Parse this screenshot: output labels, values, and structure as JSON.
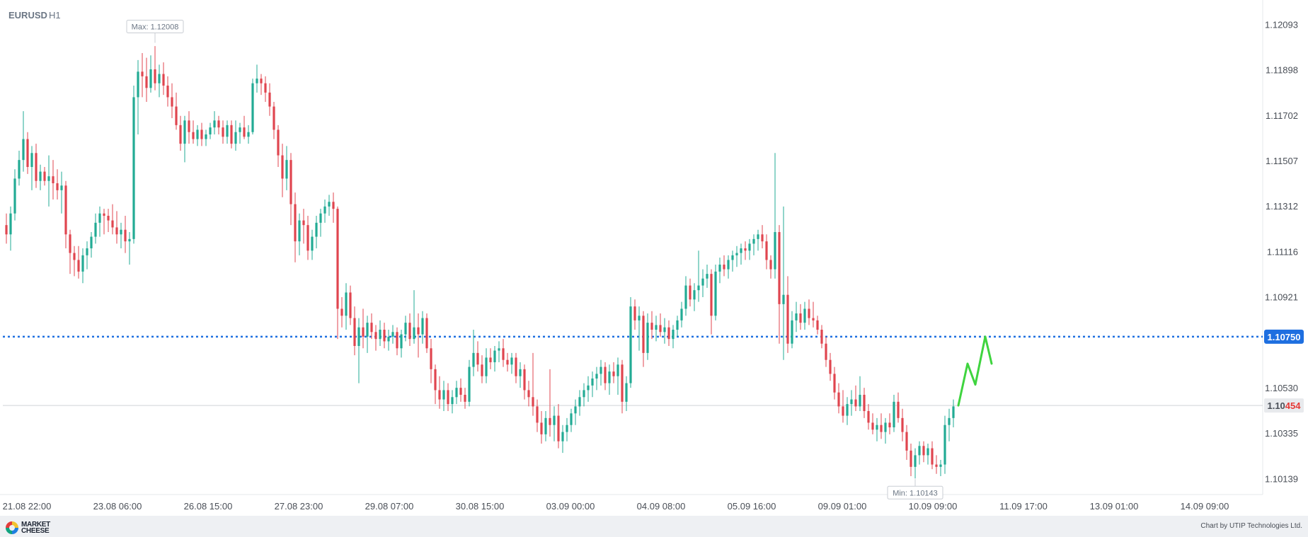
{
  "chart_data": {
    "type": "candlestick",
    "symbol": "EURUSD",
    "timeframe": "H1",
    "ylim": [
      1.1008,
      1.1218
    ],
    "y_ticks": [
      "1.12093",
      "1.11898",
      "1.11702",
      "1.11507",
      "1.11312",
      "1.11116",
      "1.10921",
      "1.10530",
      "1.10335",
      "1.10139"
    ],
    "x_ticks": [
      "21.08 22:00",
      "23.08 06:00",
      "26.08 15:00",
      "27.08 23:00",
      "29.08 07:00",
      "30.08 15:00",
      "03.09 00:00",
      "04.09 08:00",
      "05.09 16:00",
      "09.09 01:00",
      "10.09 09:00",
      "11.09 17:00",
      "13.09 01:00",
      "14.09 09:00"
    ],
    "max_label": "Max: 1.12008",
    "max_value": 1.12008,
    "min_label": "Min: 1.10143",
    "min_value": 1.10143,
    "target_level": 1.1075,
    "target_label": "1.10750",
    "current_price": 1.10454,
    "current_label_prefix": "1.10",
    "current_label_suffix": "454",
    "forecast_path": [
      1.10454,
      1.10634,
      1.10544,
      1.1075,
      1.10634
    ],
    "candles_ohlc": [
      [
        1.1123,
        1.1128,
        1.1115,
        1.1119
      ],
      [
        1.1119,
        1.1131,
        1.1112,
        1.1128
      ],
      [
        1.1128,
        1.1147,
        1.1125,
        1.1143
      ],
      [
        1.1143,
        1.1155,
        1.114,
        1.1151
      ],
      [
        1.1151,
        1.1172,
        1.1146,
        1.116
      ],
      [
        1.116,
        1.1163,
        1.1145,
        1.1148
      ],
      [
        1.1148,
        1.1157,
        1.1138,
        1.1154
      ],
      [
        1.1154,
        1.1158,
        1.1139,
        1.1142
      ],
      [
        1.1142,
        1.1149,
        1.1138,
        1.1146
      ],
      [
        1.1146,
        1.1148,
        1.114,
        1.1142
      ],
      [
        1.1142,
        1.1153,
        1.1131,
        1.1144
      ],
      [
        1.1144,
        1.1151,
        1.1134,
        1.1141
      ],
      [
        1.1141,
        1.1147,
        1.1134,
        1.1138
      ],
      [
        1.1138,
        1.1146,
        1.1128,
        1.114
      ],
      [
        1.114,
        1.1142,
        1.1113,
        1.1119
      ],
      [
        1.1119,
        1.1121,
        1.1102,
        1.1111
      ],
      [
        1.1111,
        1.1114,
        1.1101,
        1.1108
      ],
      [
        1.1108,
        1.1114,
        1.11,
        1.1103
      ],
      [
        1.1103,
        1.1113,
        1.1098,
        1.111
      ],
      [
        1.111,
        1.1116,
        1.1104,
        1.1113
      ],
      [
        1.1113,
        1.112,
        1.1109,
        1.1118
      ],
      [
        1.1118,
        1.1128,
        1.1115,
        1.1124
      ],
      [
        1.1124,
        1.1131,
        1.1118,
        1.1128
      ],
      [
        1.1128,
        1.113,
        1.1119,
        1.1127
      ],
      [
        1.1127,
        1.113,
        1.112,
        1.1125
      ],
      [
        1.1125,
        1.1132,
        1.1119,
        1.1122
      ],
      [
        1.1122,
        1.1129,
        1.1115,
        1.1119
      ],
      [
        1.1119,
        1.1124,
        1.1113,
        1.1121
      ],
      [
        1.1121,
        1.1127,
        1.1111,
        1.1116
      ],
      [
        1.1116,
        1.112,
        1.1106,
        1.1117
      ],
      [
        1.1117,
        1.1183,
        1.1115,
        1.1178
      ],
      [
        1.1178,
        1.1194,
        1.1162,
        1.1189
      ],
      [
        1.1189,
        1.1197,
        1.1178,
        1.1187
      ],
      [
        1.1187,
        1.1195,
        1.1176,
        1.1182
      ],
      [
        1.1182,
        1.1196,
        1.118,
        1.119
      ],
      [
        1.119,
        1.12,
        1.1181,
        1.1184
      ],
      [
        1.1184,
        1.1192,
        1.1178,
        1.1188
      ],
      [
        1.1188,
        1.1193,
        1.1179,
        1.1183
      ],
      [
        1.1183,
        1.1187,
        1.1174,
        1.1178
      ],
      [
        1.1178,
        1.1184,
        1.1169,
        1.1174
      ],
      [
        1.1174,
        1.118,
        1.1164,
        1.1166
      ],
      [
        1.1166,
        1.117,
        1.1155,
        1.1158
      ],
      [
        1.1158,
        1.117,
        1.115,
        1.1168
      ],
      [
        1.1168,
        1.1172,
        1.1158,
        1.1163
      ],
      [
        1.1163,
        1.1168,
        1.1158,
        1.116
      ],
      [
        1.116,
        1.1166,
        1.1157,
        1.1164
      ],
      [
        1.1164,
        1.1167,
        1.1157,
        1.116
      ],
      [
        1.116,
        1.1164,
        1.1157,
        1.1162
      ],
      [
        1.1162,
        1.1167,
        1.116,
        1.1165
      ],
      [
        1.1165,
        1.1172,
        1.1162,
        1.1168
      ],
      [
        1.1168,
        1.117,
        1.1162,
        1.1165
      ],
      [
        1.1165,
        1.1168,
        1.1158,
        1.1161
      ],
      [
        1.1161,
        1.1168,
        1.1158,
        1.1166
      ],
      [
        1.1166,
        1.1168,
        1.1156,
        1.1158
      ],
      [
        1.1158,
        1.1168,
        1.1155,
        1.1163
      ],
      [
        1.1163,
        1.1167,
        1.1158,
        1.1165
      ],
      [
        1.1165,
        1.117,
        1.116,
        1.1161
      ],
      [
        1.1161,
        1.1166,
        1.1158,
        1.1163
      ],
      [
        1.1163,
        1.1186,
        1.1162,
        1.1184
      ],
      [
        1.1184,
        1.1192,
        1.118,
        1.1186
      ],
      [
        1.1186,
        1.1188,
        1.1179,
        1.1184
      ],
      [
        1.1184,
        1.1187,
        1.1176,
        1.118
      ],
      [
        1.118,
        1.1184,
        1.117,
        1.1174
      ],
      [
        1.1174,
        1.1176,
        1.116,
        1.1164
      ],
      [
        1.1164,
        1.1166,
        1.1148,
        1.1153
      ],
      [
        1.1153,
        1.1158,
        1.1135,
        1.1143
      ],
      [
        1.1143,
        1.1157,
        1.1138,
        1.1151
      ],
      [
        1.1151,
        1.1154,
        1.1123,
        1.1132
      ],
      [
        1.1132,
        1.1137,
        1.1107,
        1.1116
      ],
      [
        1.1116,
        1.1128,
        1.111,
        1.1125
      ],
      [
        1.1125,
        1.113,
        1.1115,
        1.1123
      ],
      [
        1.1123,
        1.1127,
        1.1108,
        1.1112
      ],
      [
        1.1112,
        1.1121,
        1.1108,
        1.1118
      ],
      [
        1.1118,
        1.1127,
        1.1113,
        1.1124
      ],
      [
        1.1124,
        1.113,
        1.1118,
        1.1128
      ],
      [
        1.1128,
        1.1134,
        1.1124,
        1.1131
      ],
      [
        1.1131,
        1.1136,
        1.1127,
        1.1133
      ],
      [
        1.1133,
        1.1137,
        1.1124,
        1.113
      ],
      [
        1.113,
        1.1131,
        1.1074,
        1.1087
      ],
      [
        1.1087,
        1.1092,
        1.1079,
        1.1084
      ],
      [
        1.1084,
        1.1098,
        1.1078,
        1.1094
      ],
      [
        1.1094,
        1.1097,
        1.108,
        1.1083
      ],
      [
        1.1083,
        1.1088,
        1.1067,
        1.1071
      ],
      [
        1.1071,
        1.1083,
        1.1055,
        1.1079
      ],
      [
        1.1079,
        1.1087,
        1.107,
        1.1075
      ],
      [
        1.1075,
        1.1084,
        1.1068,
        1.1081
      ],
      [
        1.1081,
        1.1085,
        1.1074,
        1.1077
      ],
      [
        1.1077,
        1.108,
        1.1069,
        1.1074
      ],
      [
        1.1074,
        1.1082,
        1.1071,
        1.1078
      ],
      [
        1.1078,
        1.1081,
        1.107,
        1.1073
      ],
      [
        1.1073,
        1.1078,
        1.1069,
        1.1075
      ],
      [
        1.1075,
        1.108,
        1.1072,
        1.1077
      ],
      [
        1.1077,
        1.1079,
        1.1067,
        1.107
      ],
      [
        1.107,
        1.1078,
        1.1066,
        1.1076
      ],
      [
        1.1076,
        1.1084,
        1.1073,
        1.1081
      ],
      [
        1.1081,
        1.1085,
        1.1071,
        1.1074
      ],
      [
        1.1074,
        1.1095,
        1.1072,
        1.1079
      ],
      [
        1.1079,
        1.1085,
        1.1066,
        1.1076
      ],
      [
        1.1076,
        1.1086,
        1.1072,
        1.1083
      ],
      [
        1.1083,
        1.1085,
        1.1068,
        1.107
      ],
      [
        1.107,
        1.1074,
        1.1055,
        1.1061
      ],
      [
        1.1061,
        1.1063,
        1.1046,
        1.1052
      ],
      [
        1.1052,
        1.1058,
        1.1044,
        1.1048
      ],
      [
        1.1048,
        1.1056,
        1.1043,
        1.1052
      ],
      [
        1.1052,
        1.1055,
        1.1043,
        1.1046
      ],
      [
        1.1046,
        1.1052,
        1.1042,
        1.1049
      ],
      [
        1.1049,
        1.1056,
        1.1046,
        1.1053
      ],
      [
        1.1053,
        1.1057,
        1.1047,
        1.105
      ],
      [
        1.105,
        1.1053,
        1.1044,
        1.1047
      ],
      [
        1.1047,
        1.1065,
        1.1045,
        1.1062
      ],
      [
        1.1062,
        1.1078,
        1.1058,
        1.1068
      ],
      [
        1.1068,
        1.1073,
        1.106,
        1.1063
      ],
      [
        1.1063,
        1.1067,
        1.1055,
        1.1058
      ],
      [
        1.1058,
        1.107,
        1.1055,
        1.1066
      ],
      [
        1.1066,
        1.107,
        1.1061,
        1.1064
      ],
      [
        1.1064,
        1.1071,
        1.106,
        1.1069
      ],
      [
        1.1069,
        1.1073,
        1.1064,
        1.107
      ],
      [
        1.107,
        1.1074,
        1.1062,
        1.1065
      ],
      [
        1.1065,
        1.1068,
        1.106,
        1.1063
      ],
      [
        1.1063,
        1.1068,
        1.1059,
        1.1066
      ],
      [
        1.1066,
        1.1068,
        1.1055,
        1.1058
      ],
      [
        1.1058,
        1.1064,
        1.1053,
        1.1061
      ],
      [
        1.1061,
        1.1063,
        1.1048,
        1.1052
      ],
      [
        1.1052,
        1.1056,
        1.1045,
        1.1049
      ],
      [
        1.1049,
        1.1068,
        1.1041,
        1.1045
      ],
      [
        1.1045,
        1.1048,
        1.1034,
        1.1038
      ],
      [
        1.1038,
        1.1043,
        1.1029,
        1.1033
      ],
      [
        1.1033,
        1.1043,
        1.103,
        1.104
      ],
      [
        1.104,
        1.1061,
        1.1032,
        1.1037
      ],
      [
        1.1037,
        1.1045,
        1.103,
        1.1041
      ],
      [
        1.1041,
        1.1046,
        1.1027,
        1.103
      ],
      [
        1.103,
        1.1037,
        1.1025,
        1.1034
      ],
      [
        1.1034,
        1.104,
        1.103,
        1.1037
      ],
      [
        1.1037,
        1.1044,
        1.1034,
        1.1042
      ],
      [
        1.1042,
        1.1048,
        1.1037,
        1.1045
      ],
      [
        1.1045,
        1.1052,
        1.1041,
        1.1049
      ],
      [
        1.1049,
        1.1055,
        1.1045,
        1.1052
      ],
      [
        1.1052,
        1.1058,
        1.1047,
        1.1054
      ],
      [
        1.1054,
        1.106,
        1.1049,
        1.1057
      ],
      [
        1.1057,
        1.1062,
        1.1052,
        1.1059
      ],
      [
        1.1059,
        1.1065,
        1.1054,
        1.1062
      ],
      [
        1.1062,
        1.1064,
        1.1052,
        1.1055
      ],
      [
        1.1055,
        1.1063,
        1.105,
        1.106
      ],
      [
        1.106,
        1.1064,
        1.1055,
        1.1058
      ],
      [
        1.1058,
        1.1066,
        1.105,
        1.1063
      ],
      [
        1.1063,
        1.1065,
        1.1042,
        1.1047
      ],
      [
        1.1047,
        1.1058,
        1.1043,
        1.1055
      ],
      [
        1.1055,
        1.1092,
        1.1053,
        1.1088
      ],
      [
        1.1088,
        1.1091,
        1.1078,
        1.1082
      ],
      [
        1.1082,
        1.1088,
        1.1069,
        1.1084
      ],
      [
        1.1084,
        1.1086,
        1.1062,
        1.1068
      ],
      [
        1.1068,
        1.1085,
        1.1065,
        1.1081
      ],
      [
        1.1081,
        1.1086,
        1.1074,
        1.1078
      ],
      [
        1.1078,
        1.1084,
        1.1073,
        1.108
      ],
      [
        1.108,
        1.1085,
        1.1075,
        1.1077
      ],
      [
        1.1077,
        1.1083,
        1.1072,
        1.1079
      ],
      [
        1.1079,
        1.1082,
        1.1071,
        1.1074
      ],
      [
        1.1074,
        1.108,
        1.107,
        1.1078
      ],
      [
        1.1078,
        1.1084,
        1.1075,
        1.1082
      ],
      [
        1.1082,
        1.109,
        1.1079,
        1.1087
      ],
      [
        1.1087,
        1.1101,
        1.1084,
        1.1097
      ],
      [
        1.1097,
        1.11,
        1.1088,
        1.1091
      ],
      [
        1.1091,
        1.1098,
        1.1086,
        1.1095
      ],
      [
        1.1095,
        1.1112,
        1.109,
        1.1097
      ],
      [
        1.1097,
        1.1104,
        1.1092,
        1.11
      ],
      [
        1.11,
        1.1106,
        1.1096,
        1.1102
      ],
      [
        1.1102,
        1.1104,
        1.1076,
        1.1084
      ],
      [
        1.1084,
        1.1106,
        1.1082,
        1.1103
      ],
      [
        1.1103,
        1.1109,
        1.1098,
        1.1106
      ],
      [
        1.1106,
        1.111,
        1.1101,
        1.1104
      ],
      [
        1.1104,
        1.111,
        1.11,
        1.1108
      ],
      [
        1.1108,
        1.1112,
        1.1103,
        1.111
      ],
      [
        1.111,
        1.1114,
        1.1105,
        1.1111
      ],
      [
        1.1111,
        1.1115,
        1.1106,
        1.1113
      ],
      [
        1.1113,
        1.1116,
        1.1108,
        1.1112
      ],
      [
        1.1112,
        1.1117,
        1.1108,
        1.1115
      ],
      [
        1.1115,
        1.1119,
        1.111,
        1.1117
      ],
      [
        1.1117,
        1.1121,
        1.1112,
        1.1119
      ],
      [
        1.1119,
        1.1123,
        1.1113,
        1.1116
      ],
      [
        1.1116,
        1.1119,
        1.1104,
        1.1108
      ],
      [
        1.1108,
        1.111,
        1.11,
        1.1104
      ],
      [
        1.1104,
        1.1154,
        1.11,
        1.112
      ],
      [
        1.112,
        1.1123,
        1.1072,
        1.1089
      ],
      [
        1.1089,
        1.1131,
        1.1065,
        1.1093
      ],
      [
        1.1093,
        1.1101,
        1.1068,
        1.1072
      ],
      [
        1.1072,
        1.1086,
        1.107,
        1.1082
      ],
      [
        1.1082,
        1.109,
        1.1077,
        1.1085
      ],
      [
        1.1085,
        1.1089,
        1.1078,
        1.1081
      ],
      [
        1.1081,
        1.109,
        1.1078,
        1.1087
      ],
      [
        1.1087,
        1.1091,
        1.108,
        1.1083
      ],
      [
        1.1083,
        1.109,
        1.1079,
        1.1082
      ],
      [
        1.1082,
        1.1084,
        1.1076,
        1.1078
      ],
      [
        1.1078,
        1.108,
        1.107,
        1.1072
      ],
      [
        1.1072,
        1.1075,
        1.1062,
        1.1065
      ],
      [
        1.1065,
        1.1068,
        1.1056,
        1.1059
      ],
      [
        1.1059,
        1.1062,
        1.1048,
        1.1051
      ],
      [
        1.1051,
        1.1055,
        1.1042,
        1.1045
      ],
      [
        1.1045,
        1.1052,
        1.1038,
        1.1041
      ],
      [
        1.1041,
        1.1049,
        1.1037,
        1.1046
      ],
      [
        1.1046,
        1.1052,
        1.1041,
        1.1048
      ],
      [
        1.1048,
        1.1054,
        1.1043,
        1.1045
      ],
      [
        1.1045,
        1.1058,
        1.1043,
        1.105
      ],
      [
        1.105,
        1.1053,
        1.104,
        1.1043
      ],
      [
        1.1043,
        1.1046,
        1.1035,
        1.1038
      ],
      [
        1.1038,
        1.1042,
        1.1033,
        1.1035
      ],
      [
        1.1035,
        1.104,
        1.103,
        1.1037
      ],
      [
        1.1037,
        1.1042,
        1.1031,
        1.1034
      ],
      [
        1.1034,
        1.104,
        1.1029,
        1.1038
      ],
      [
        1.1038,
        1.1042,
        1.1033,
        1.1036
      ],
      [
        1.1036,
        1.105,
        1.1034,
        1.1047
      ],
      [
        1.1047,
        1.1051,
        1.1038,
        1.104
      ],
      [
        1.104,
        1.1044,
        1.103,
        1.1034
      ],
      [
        1.1034,
        1.1037,
        1.1022,
        1.1026
      ],
      [
        1.1026,
        1.1029,
        1.1015,
        1.1019
      ],
      [
        1.1019,
        1.1027,
        1.1014,
        1.1024
      ],
      [
        1.1024,
        1.103,
        1.102,
        1.1028
      ],
      [
        1.1028,
        1.103,
        1.1021,
        1.1024
      ],
      [
        1.1024,
        1.1029,
        1.102,
        1.1027
      ],
      [
        1.1027,
        1.103,
        1.1018,
        1.102
      ],
      [
        1.102,
        1.1024,
        1.1016,
        1.1019
      ],
      [
        1.1019,
        1.1022,
        1.1015,
        1.102
      ],
      [
        1.102,
        1.1041,
        1.1016,
        1.1037
      ],
      [
        1.1037,
        1.1044,
        1.103,
        1.104
      ],
      [
        1.104,
        1.1048,
        1.1036,
        1.1045
      ]
    ]
  },
  "footer": {
    "brand_line1": "MARKET",
    "brand_line2": "CHEESE",
    "credit": "Chart by UTIP Technologies Ltd."
  },
  "colors": {
    "bull": "#22ab94",
    "bear": "#e0454f",
    "target_line": "#1e6fe0",
    "forecast": "#3fd43f",
    "current_suffix": "#e53935"
  }
}
